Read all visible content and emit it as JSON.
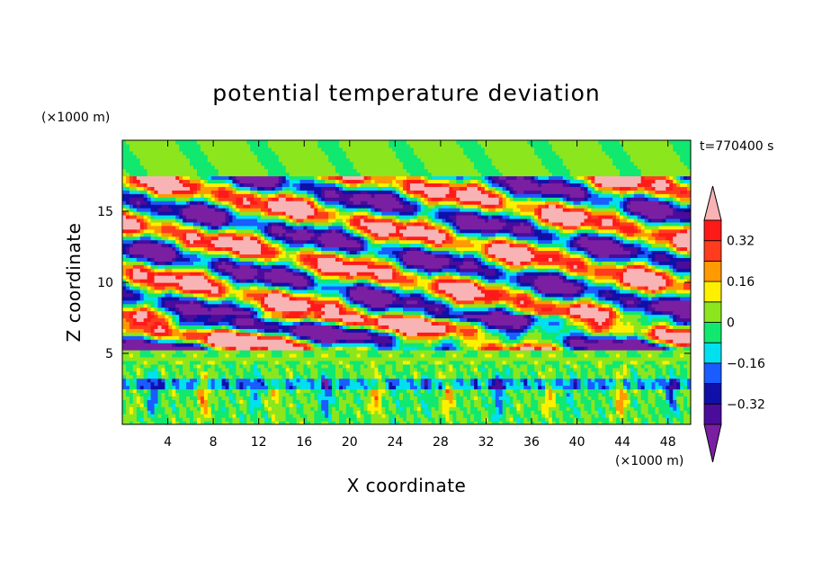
{
  "chart_data": {
    "type": "heatmap",
    "title": "potential temperature deviation",
    "xlabel": "X coordinate",
    "ylabel": "Z coordinate",
    "x_unit_label": "(×1000 m)",
    "y_unit_label": "(×1000 m)",
    "time_label": "t=770400 s",
    "xlim": [
      0,
      50
    ],
    "ylim": [
      0,
      20
    ],
    "x_ticks": [
      4,
      8,
      12,
      16,
      20,
      24,
      28,
      32,
      36,
      40,
      44,
      48
    ],
    "y_ticks": [
      5,
      10,
      15
    ],
    "grid": false,
    "legend": "colorbar-right",
    "colorbar": {
      "levels": [
        -0.4,
        -0.32,
        -0.24,
        -0.16,
        -0.08,
        0,
        0.08,
        0.16,
        0.24,
        0.32,
        0.4
      ],
      "tick_values": [
        -0.32,
        -0.16,
        0,
        0.16,
        0.32
      ],
      "tick_labels": [
        "−0.32",
        "−0.16",
        "0",
        "0.16",
        "0.32"
      ],
      "colors": [
        "#7b1fa2",
        "#4b0c9b",
        "#1010a8",
        "#1a5cff",
        "#00e0ee",
        "#10e870",
        "#8ce61e",
        "#fff000",
        "#ff9a00",
        "#ff3c1e",
        "#ff1a1a",
        "#f8b4b4"
      ]
    }
  }
}
